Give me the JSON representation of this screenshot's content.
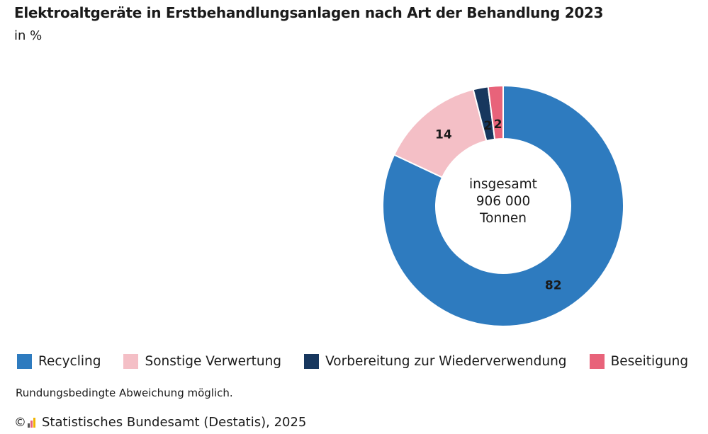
{
  "title": "Elektroaltgeräte in Erstbehandlungsanlagen nach Art der Behandlung 2023",
  "subtitle": "in %",
  "chart_data": {
    "type": "pie",
    "variant": "donut",
    "title": "Elektroaltgeräte in Erstbehandlungsanlagen nach Art der Behandlung 2023",
    "unit": "in %",
    "categories": [
      "Recycling",
      "Sonstige Verwertung",
      "Vorbereitung zur Wiederverwendung",
      "Beseitigung"
    ],
    "values": [
      82,
      14,
      2,
      2
    ],
    "labels": [
      "82",
      "14",
      "2",
      "2"
    ],
    "colors": [
      "#2e7bbf",
      "#f4bfc6",
      "#17375e",
      "#e8637a"
    ],
    "center_text": [
      "insgesamt",
      "906 000",
      "Tonnen"
    ],
    "legend_position": "bottom"
  },
  "note": "Rundungsbedingte Abweichung möglich.",
  "footer": {
    "copyright_symbol": "©",
    "source": "Statistisches Bundesamt (Destatis), 2025"
  }
}
